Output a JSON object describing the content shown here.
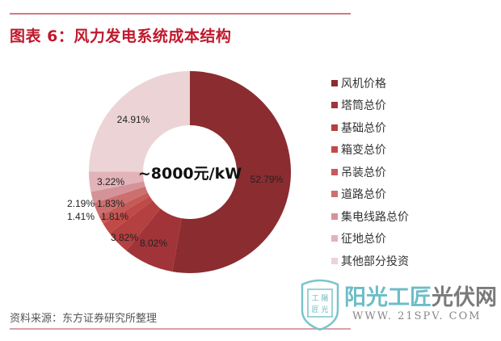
{
  "header": {
    "title": "图表 6：风力发电系统成本结构"
  },
  "footer": {
    "source": "资料来源：东方证券研究所整理"
  },
  "watermark": {
    "cn_part1": "阳光工匠",
    "cn_part2": "光伏网",
    "url": "WWW. 21SPV. COM",
    "badge_top": "工 陽",
    "badge_bottom": "匠 光"
  },
  "chart_data": {
    "type": "pie",
    "subtype": "donut",
    "title": "风力发电系统成本结构",
    "center_label": "~8000元/kW",
    "legend_position": "right",
    "categories": [
      "风机价格",
      "塔筒总价",
      "基础总价",
      "箱变总价",
      "吊装总价",
      "道路总价",
      "集电线路总价",
      "征地总价",
      "其他部分投资"
    ],
    "values": [
      52.79,
      8.02,
      3.82,
      1.81,
      1.41,
      2.19,
      1.83,
      3.22,
      24.91
    ],
    "labels": [
      "52.79%",
      "8.02%",
      "3.82%",
      "1.81%",
      "1.41%",
      "2.19%",
      "1.83%",
      "3.22%",
      "24.91%"
    ],
    "colors": [
      "#8b2c30",
      "#a13438",
      "#b4403f",
      "#c04a48",
      "#c45b58",
      "#cc6f6e",
      "#d49398",
      "#e2b3b8",
      "#ecd3d5"
    ]
  },
  "legend": {
    "items": [
      {
        "label": "风机价格",
        "color": "#8b2c30"
      },
      {
        "label": "塔筒总价",
        "color": "#a13438"
      },
      {
        "label": "基础总价",
        "color": "#b4403f"
      },
      {
        "label": "箱变总价",
        "color": "#c04a48"
      },
      {
        "label": "吊装总价",
        "color": "#c45b58"
      },
      {
        "label": "道路总价",
        "color": "#cc6f6e"
      },
      {
        "label": "集电线路总价",
        "color": "#d49398"
      },
      {
        "label": "征地总价",
        "color": "#e2b3b8"
      },
      {
        "label": "其他部分投资",
        "color": "#ecd3d5"
      }
    ]
  }
}
